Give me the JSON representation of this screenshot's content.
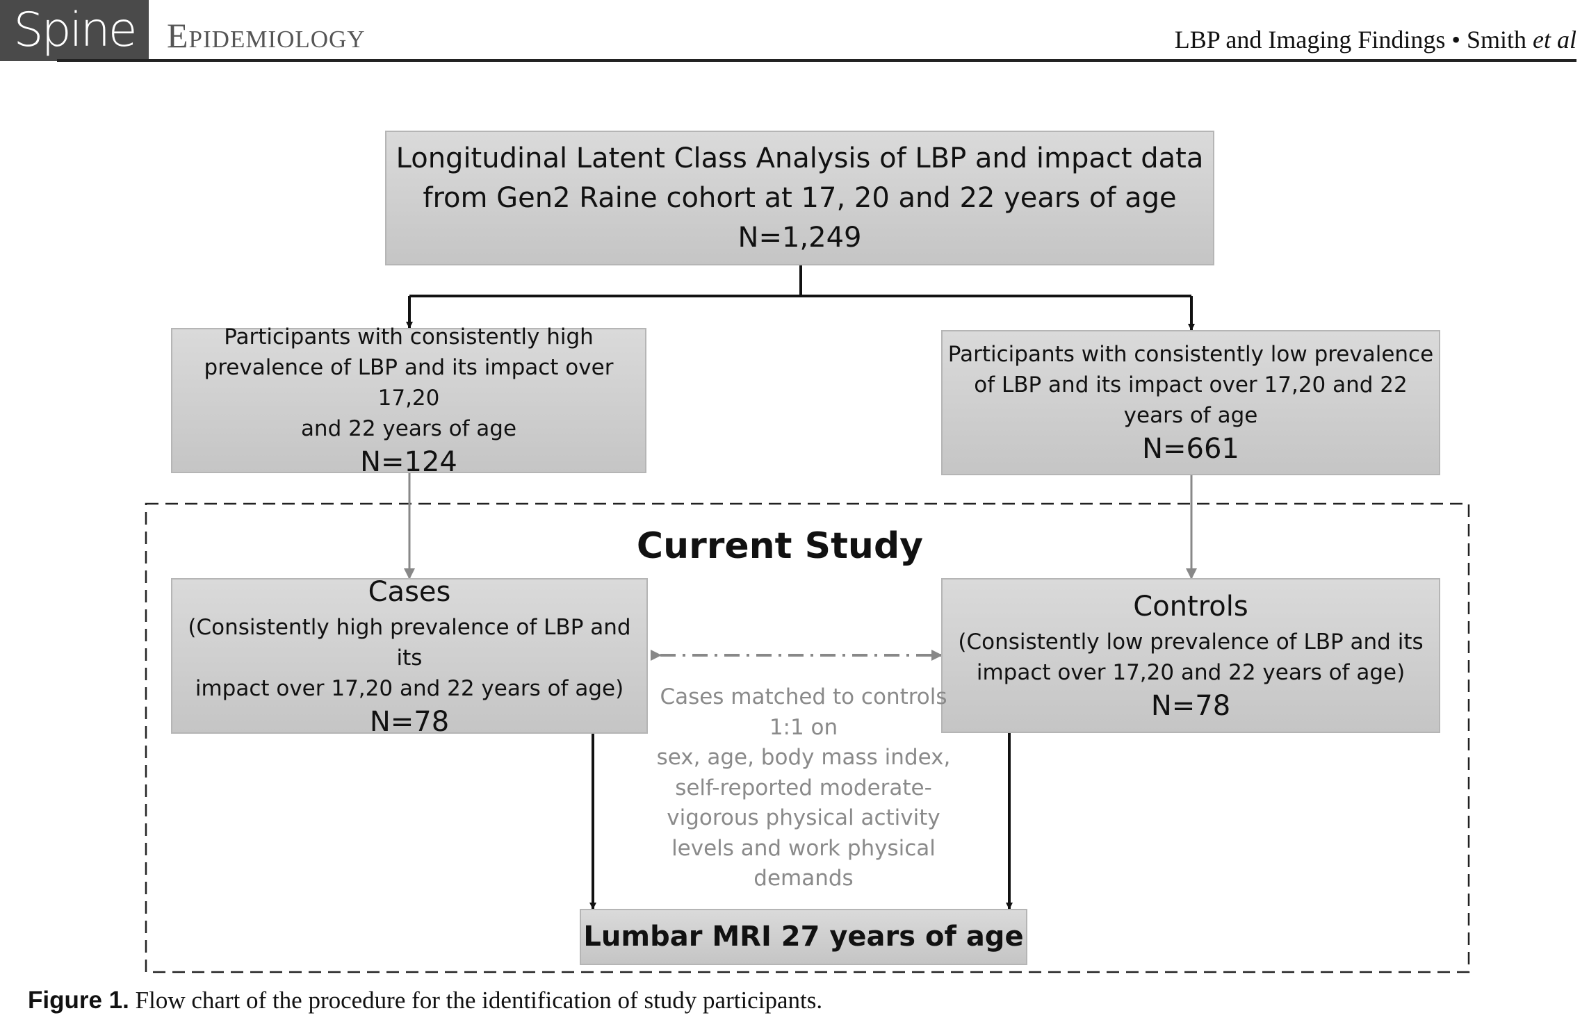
{
  "header": {
    "journal_logo": "Spine",
    "section": "Epidemiology",
    "running_title": "LBP and Imaging Findings",
    "bullet": "•",
    "authors": "Smith",
    "etal": "et al"
  },
  "flowchart": {
    "top": {
      "line1": "Longitudinal Latent Class Analysis of LBP and impact data",
      "line2": "from Gen2 Raine cohort at 17, 20 and 22 years of age",
      "n": "N=1,249"
    },
    "high": {
      "line1": "Participants with consistently high",
      "line2": "prevalence of LBP and its impact over 17,20",
      "line3": "and 22 years of age",
      "n": "N=124"
    },
    "low": {
      "line1": "Participants with consistently low prevalence",
      "line2": "of LBP and its impact over 17,20 and 22",
      "line3": "years of age",
      "n": "N=661"
    },
    "study_title": "Current Study",
    "cases": {
      "title": "Cases",
      "line1": "(Consistently high prevalence of LBP and its",
      "line2": "impact over 17,20 and 22 years of age)",
      "n": "N=78"
    },
    "controls": {
      "title": "Controls",
      "line1": "(Consistently low prevalence of LBP and its",
      "line2": "impact over 17,20 and 22 years of age)",
      "n": "N=78"
    },
    "matched": [
      "Cases matched to controls",
      "1:1 on",
      "sex, age, body mass index,",
      "self-reported moderate-",
      "vigorous physical activity",
      "levels and work physical",
      "demands"
    ],
    "mri": "Lumbar MRI 27 years of age"
  },
  "caption": {
    "label": "Figure 1.",
    "text": "Flow chart of the procedure for the identification of study participants."
  },
  "colors": {
    "box_top": "#dadada",
    "box_bottom": "#c5c5c5",
    "matched_text": "#8a8a8a",
    "logo_bg": "#4a4a4a"
  }
}
